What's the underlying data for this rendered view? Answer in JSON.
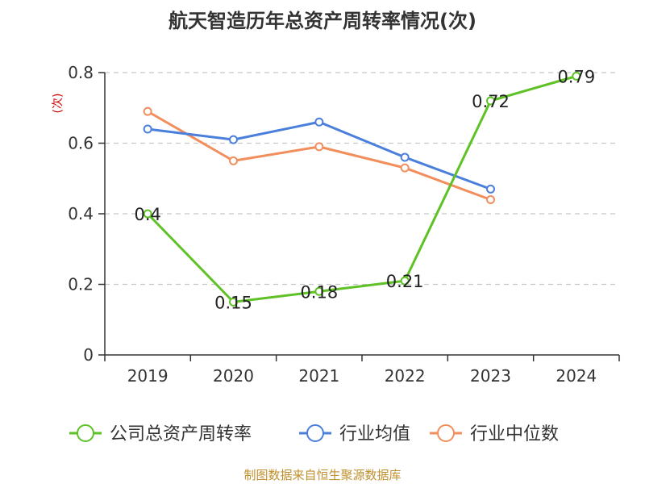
{
  "title": "航天智造历年总资产周转率情况(次)",
  "source": "制图数据来自恒生聚源数据库",
  "chart_data": {
    "type": "line",
    "title": "航天智造历年总资产周转率情况(次)",
    "ylabel": "(次)",
    "xlabel": "",
    "categories": [
      "2019",
      "2020",
      "2021",
      "2022",
      "2023",
      "2024"
    ],
    "ylim": [
      0,
      0.8
    ],
    "yticks": [
      "0",
      "0.2",
      "0.4",
      "0.6",
      "0.8"
    ],
    "grid": "horizontal-dashed",
    "legend_position": "bottom",
    "series": [
      {
        "name": "公司总资产周转率",
        "color": "#5ec125",
        "values": [
          0.4,
          0.15,
          0.18,
          0.21,
          0.72,
          0.79
        ],
        "show_labels": true,
        "labels": [
          "0.4",
          "0.15",
          "0.18",
          "0.21",
          "0.72",
          "0.79"
        ]
      },
      {
        "name": "行业均值",
        "color": "#4a7fdb",
        "values": [
          0.64,
          0.61,
          0.66,
          0.56,
          0.47,
          null
        ],
        "show_labels": false
      },
      {
        "name": "行业中位数",
        "color": "#f28e5c",
        "values": [
          0.69,
          0.55,
          0.59,
          0.53,
          0.44,
          null
        ],
        "show_labels": false
      }
    ]
  }
}
